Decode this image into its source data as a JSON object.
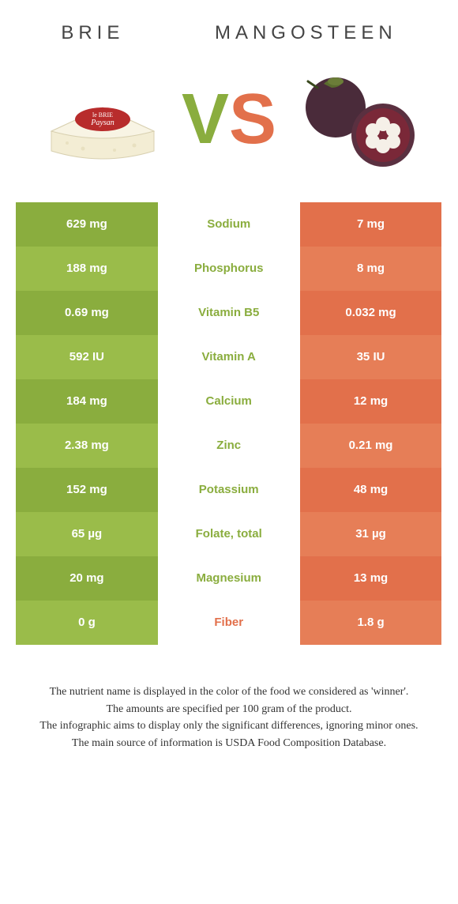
{
  "header": {
    "left": "BRIE",
    "right": "MANGOSTEEN"
  },
  "vs": {
    "v": "V",
    "s": "S"
  },
  "colors": {
    "green_dark": "#8aad3e",
    "green_light": "#9abc4a",
    "orange_dark": "#e2704b",
    "orange_light": "#e67e57",
    "text_white": "#ffffff",
    "mid_bg": "#ffffff"
  },
  "rows": [
    {
      "left": "629 mg",
      "label": "Sodium",
      "right": "7 mg",
      "winner": "left"
    },
    {
      "left": "188 mg",
      "label": "Phosphorus",
      "right": "8 mg",
      "winner": "left"
    },
    {
      "left": "0.69 mg",
      "label": "Vitamin B5",
      "right": "0.032 mg",
      "winner": "left"
    },
    {
      "left": "592 IU",
      "label": "Vitamin A",
      "right": "35 IU",
      "winner": "left"
    },
    {
      "left": "184 mg",
      "label": "Calcium",
      "right": "12 mg",
      "winner": "left"
    },
    {
      "left": "2.38 mg",
      "label": "Zinc",
      "right": "0.21 mg",
      "winner": "left"
    },
    {
      "left": "152 mg",
      "label": "Potassium",
      "right": "48 mg",
      "winner": "left"
    },
    {
      "left": "65 µg",
      "label": "Folate, total",
      "right": "31 µg",
      "winner": "left"
    },
    {
      "left": "20 mg",
      "label": "Magnesium",
      "right": "13 mg",
      "winner": "left"
    },
    {
      "left": "0 g",
      "label": "Fiber",
      "right": "1.8 g",
      "winner": "right"
    }
  ],
  "footer": {
    "l1": "The nutrient name is displayed in the color of the food we considered as 'winner'.",
    "l2": "The amounts are specified per 100 gram of the product.",
    "l3": "The infographic aims to display only the significant differences, ignoring minor ones.",
    "l4": "The main source of information is USDA Food Composition Database."
  }
}
